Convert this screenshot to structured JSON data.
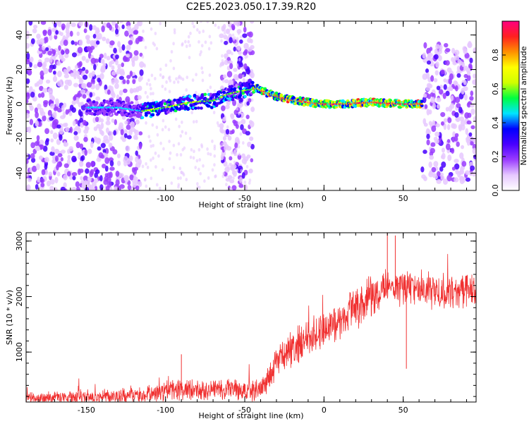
{
  "title": "C2E5.2023.050.17.39.R20",
  "chart_data": [
    {
      "type": "heatmap",
      "xlabel": "Height of straight line (km)",
      "ylabel": "Frequency (Hz)",
      "xlim": [
        -188,
        96
      ],
      "ylim": [
        -50,
        48
      ],
      "xticks": [
        -150,
        -100,
        -50,
        0,
        50
      ],
      "yticks": [
        -40,
        -20,
        0,
        20,
        40
      ],
      "colorbar": {
        "label": "Normalized spectral amplitude",
        "range": [
          0,
          1
        ],
        "ticks": [
          0.0,
          0.2,
          0.4,
          0.6,
          0.8
        ],
        "tick_labels": [
          "0.0",
          "0.2",
          "0.4",
          "0.6",
          "0.8"
        ],
        "colormap": [
          "#ffffff",
          "#e6c8ff",
          "#9a3cff",
          "#4800ff",
          "#0000ff",
          "#00e5ff",
          "#00ff40",
          "#d0ff00",
          "#ffff00",
          "#ff9000",
          "#ff2020",
          "#ff0080"
        ]
      },
      "ridge": {
        "description_points_x": [
          -148,
          -130,
          -115,
          -100,
          -85,
          -70,
          -60,
          -50,
          -42,
          -35,
          -25,
          -10,
          0,
          10,
          30,
          50,
          60
        ],
        "frequency_hz": [
          -2,
          -2,
          -4,
          -2,
          1,
          2,
          6,
          8,
          9,
          6,
          3,
          1,
          0,
          0,
          1,
          0,
          0
        ]
      },
      "noise_regions": [
        {
          "x_range": [
            -188,
            -115
          ],
          "y_range": [
            -50,
            48
          ]
        },
        {
          "x_range": [
            -65,
            -45
          ],
          "y_range": [
            -50,
            48
          ]
        },
        {
          "x_range": [
            62,
            96
          ],
          "y_range": [
            -45,
            35
          ]
        }
      ]
    },
    {
      "type": "line",
      "xlabel": "Height of straight line (km)",
      "ylabel": "SNR (10 * v/v)",
      "xlim": [
        -188,
        96
      ],
      "ylim": [
        100,
        3150
      ],
      "xticks": [
        -150,
        -100,
        -50,
        0,
        50
      ],
      "yticks": [
        1000,
        2000,
        3000
      ],
      "color": "#f03030",
      "envelope": {
        "x": [
          -188,
          -150,
          -110,
          -100,
          -80,
          -60,
          -40,
          -35,
          -30,
          -20,
          -10,
          0,
          10,
          20,
          30,
          40,
          50,
          60,
          70,
          80,
          96
        ],
        "y": [
          170,
          190,
          230,
          300,
          330,
          330,
          300,
          500,
          850,
          1050,
          1250,
          1400,
          1550,
          1800,
          2000,
          2150,
          2200,
          2150,
          2100,
          2100,
          2150
        ]
      },
      "noise_amplitude": [
        120,
        120,
        150,
        180,
        200,
        200,
        200,
        280,
        300,
        330,
        330,
        330,
        350,
        360,
        370,
        360,
        340,
        330,
        320,
        320,
        320
      ],
      "spikes": [
        {
          "x": -90,
          "y": 960
        },
        {
          "x": 40,
          "y": 3150
        },
        {
          "x": 52,
          "y": 700
        },
        {
          "x": 45,
          "y": 3100
        }
      ]
    }
  ]
}
